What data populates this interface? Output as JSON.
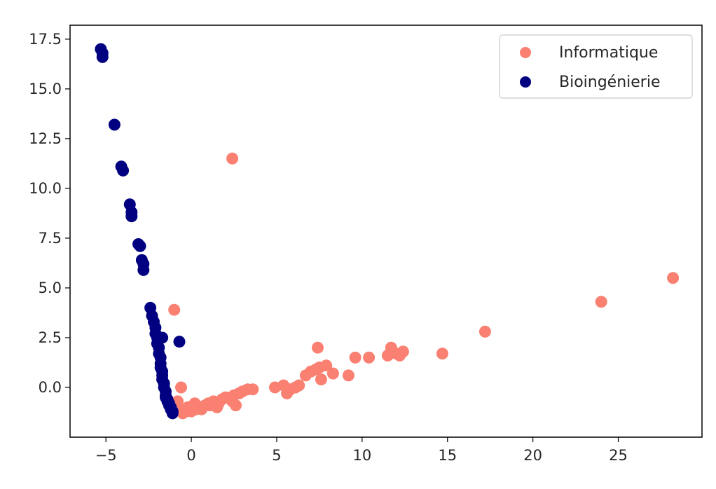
{
  "chart_data": {
    "type": "scatter",
    "title": "",
    "xlabel": "",
    "ylabel": "",
    "xlim": [
      -7.1,
      29.9
    ],
    "ylim": [
      -2.5,
      18.2
    ],
    "x_ticks": [
      -5,
      0,
      5,
      10,
      15,
      20,
      25
    ],
    "x_tick_labels": [
      "−5",
      "0",
      "5",
      "10",
      "15",
      "20",
      "25"
    ],
    "y_ticks": [
      0.0,
      2.5,
      5.0,
      7.5,
      10.0,
      12.5,
      15.0,
      17.5
    ],
    "y_tick_labels": [
      "0.0",
      "2.5",
      "5.0",
      "7.5",
      "10.0",
      "12.5",
      "15.0",
      "17.5"
    ],
    "grid": false,
    "legend": {
      "position": "top-right"
    },
    "series": [
      {
        "name": "Informatique",
        "color": "#fa8072",
        "x": [
          2.4,
          -1.0,
          -0.6,
          -0.8,
          -0.6,
          -0.5,
          -0.3,
          0.0,
          0.3,
          0.5,
          0.8,
          1.0,
          1.3,
          1.6,
          1.8,
          2.0,
          2.3,
          2.5,
          2.8,
          3.0,
          3.3,
          3.6,
          -0.2,
          0.6,
          1.1,
          1.5,
          2.4,
          2.6,
          0.2,
          4.9,
          5.4,
          5.6,
          5.8,
          6.1,
          6.3,
          6.7,
          7.0,
          7.3,
          7.5,
          7.6,
          7.9,
          8.3,
          9.2,
          9.6,
          10.4,
          11.5,
          11.7,
          12.0,
          12.2,
          12.4,
          7.4,
          14.7,
          17.2,
          24.0,
          28.2
        ],
        "y": [
          11.5,
          3.9,
          0.0,
          -0.7,
          -1.1,
          -1.3,
          -1.2,
          -1.2,
          -1.1,
          -1.0,
          -0.9,
          -0.8,
          -0.7,
          -0.8,
          -0.6,
          -0.5,
          -0.5,
          -0.4,
          -0.3,
          -0.2,
          -0.1,
          -0.1,
          -1.0,
          -1.1,
          -0.9,
          -1.0,
          -0.7,
          -0.9,
          -0.8,
          0.0,
          0.1,
          -0.3,
          -0.1,
          0.0,
          0.1,
          0.6,
          0.8,
          0.9,
          1.0,
          0.4,
          1.1,
          0.7,
          0.6,
          1.5,
          1.5,
          1.6,
          2.0,
          1.7,
          1.6,
          1.8,
          2.0,
          1.7,
          2.8,
          4.3,
          5.5
        ]
      },
      {
        "name": "Bioingénierie",
        "color": "#000080",
        "x": [
          -5.3,
          -5.2,
          -5.2,
          -4.5,
          -4.1,
          -4.0,
          -3.6,
          -3.5,
          -3.5,
          -3.1,
          -3.0,
          -2.9,
          -2.8,
          -2.8,
          -2.4,
          -2.3,
          -2.2,
          -2.1,
          -2.1,
          -2.0,
          -2.0,
          -1.9,
          -1.9,
          -1.8,
          -1.8,
          -1.8,
          -1.7,
          -1.7,
          -1.7,
          -1.6,
          -1.6,
          -1.5,
          -1.5,
          -1.5,
          -1.4,
          -1.4,
          -1.3,
          -1.3,
          -1.2,
          -1.2,
          -1.1,
          -1.1,
          -1.7,
          -0.7
        ],
        "y": [
          17.0,
          16.8,
          16.6,
          13.2,
          11.1,
          10.9,
          9.2,
          8.8,
          8.6,
          7.2,
          7.1,
          6.4,
          6.2,
          5.9,
          4.0,
          3.6,
          3.3,
          3.0,
          2.7,
          2.5,
          2.2,
          2.0,
          1.7,
          1.5,
          1.2,
          1.0,
          0.8,
          0.6,
          0.4,
          0.2,
          0.0,
          -0.2,
          -0.4,
          -0.5,
          -0.6,
          -0.7,
          -0.8,
          -0.9,
          -1.0,
          -1.1,
          -1.2,
          -1.3,
          2.5,
          2.3
        ]
      }
    ]
  }
}
